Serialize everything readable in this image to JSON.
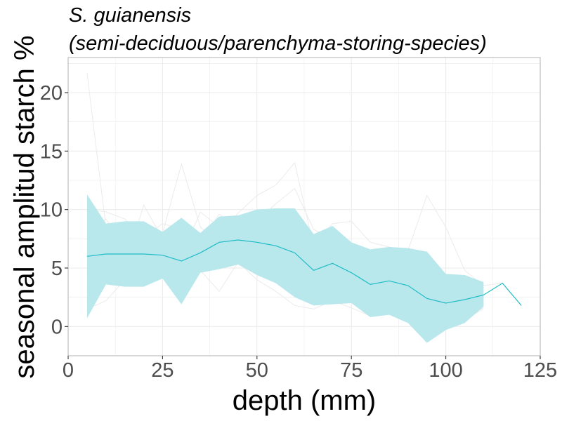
{
  "chart_data": {
    "type": "line",
    "title_lines": [
      "S. guianensis",
      "(semi-deciduous/parenchyma-storing-species)"
    ],
    "xlabel": "depth (mm)",
    "ylabel": "seasonal amplitud starch %",
    "xlim": [
      0,
      125
    ],
    "ylim": [
      -2.5,
      23
    ],
    "x_ticks": [
      0,
      25,
      50,
      75,
      100,
      125
    ],
    "y_ticks": [
      0,
      5,
      10,
      15,
      20
    ],
    "grid": true,
    "legend": "none",
    "colors": {
      "mean_line": "#1fbcc5",
      "ribbon": "#b8e7ec",
      "individual_lines": "#ebebeb",
      "grid": "#ebebeb",
      "panel_border": "#b3b3b3"
    },
    "series": [
      {
        "role": "mean",
        "x": [
          5,
          10,
          15,
          20,
          25,
          30,
          35,
          40,
          45,
          50,
          55,
          60,
          65,
          70,
          75,
          80,
          85,
          90,
          95,
          100,
          105,
          110,
          115,
          120
        ],
        "y": [
          6.0,
          6.2,
          6.2,
          6.2,
          6.1,
          5.6,
          6.3,
          7.2,
          7.4,
          7.2,
          6.9,
          6.3,
          4.8,
          5.4,
          4.6,
          3.6,
          3.9,
          3.5,
          2.4,
          2.0,
          2.3,
          2.7,
          3.7,
          1.8
        ]
      },
      {
        "role": "ribbon",
        "x": [
          5,
          10,
          15,
          20,
          25,
          30,
          35,
          40,
          45,
          50,
          55,
          60,
          65,
          70,
          75,
          80,
          85,
          90,
          95,
          100,
          105,
          110
        ],
        "upper": [
          11.3,
          8.8,
          9.0,
          9.0,
          8.1,
          9.3,
          8.0,
          9.4,
          9.5,
          10.0,
          10.1,
          10.1,
          7.9,
          8.6,
          7.2,
          6.6,
          6.8,
          6.7,
          6.4,
          4.5,
          4.4,
          3.8
        ],
        "lower": [
          0.7,
          3.6,
          3.4,
          3.4,
          4.1,
          1.9,
          4.6,
          4.9,
          5.3,
          4.4,
          3.7,
          2.5,
          1.8,
          1.9,
          2.0,
          0.8,
          1.0,
          0.3,
          -1.4,
          -0.3,
          0.3,
          1.7
        ]
      },
      {
        "role": "individual",
        "x": [
          5,
          10,
          15,
          20,
          25,
          30,
          35,
          40,
          45,
          50,
          55,
          60,
          65,
          70,
          75,
          80,
          85,
          90,
          95,
          100,
          105,
          110,
          115,
          120
        ],
        "lines": [
          [
            21.7,
            8.5,
            6.5,
            7.2,
            5.0,
            4.0,
            6.1,
            7.5,
            8.0,
            6.6,
            6.0,
            5.2,
            3.8,
            4.5,
            3.2,
            2.5,
            2.8,
            1.8,
            1.0,
            1.2,
            2.0,
            2.6
          ],
          [
            2.0,
            5.5,
            7.0,
            8.5,
            8.0,
            13.9,
            8.5,
            7.2,
            6.5,
            9.0,
            10.5,
            11.8,
            8.3,
            7.5,
            6.0,
            4.8,
            4.0,
            3.0,
            2.2,
            1.5,
            1.4,
            1.8
          ],
          [
            4.5,
            7.8,
            8.2,
            6.0,
            6.8,
            3.5,
            5.6,
            7.8,
            9.7,
            11.2,
            12.1,
            14.0,
            6.8,
            8.8,
            9.0,
            7.2,
            6.8,
            6.5,
            11.2,
            8.5,
            4.8,
            3.5,
            3.7,
            1.8
          ],
          [
            6.8,
            4.2,
            5.0,
            10.4,
            7.5,
            6.0,
            9.8,
            8.5,
            7.0,
            6.0,
            5.5,
            4.0,
            2.5,
            3.0,
            2.5,
            1.2,
            2.0,
            0.8,
            0.5,
            0.2,
            0.6,
            1.5
          ],
          [
            8.0,
            9.2,
            6.8,
            5.5,
            6.2,
            5.0,
            7.0,
            6.8,
            8.8,
            7.5,
            8.2,
            7.6,
            5.5,
            6.2,
            5.2,
            3.8,
            5.0,
            4.8,
            3.0,
            2.2,
            2.0,
            2.3
          ],
          [
            3.2,
            5.0,
            6.0,
            6.8,
            5.5,
            7.2,
            6.5,
            5.5,
            6.2,
            5.8,
            4.8,
            3.5,
            2.8,
            3.4,
            3.0,
            2.6,
            2.9,
            2.4,
            1.4,
            1.0,
            1.3,
            2.0
          ],
          [
            1.5,
            2.2,
            4.0,
            4.6,
            4.2,
            2.6,
            4.8,
            3.0,
            5.5,
            4.0,
            3.0,
            1.8,
            1.5,
            2.2,
            1.6,
            0.9,
            1.2,
            0.6,
            0.3,
            0.4,
            0.8,
            1.6
          ],
          [
            10.0,
            9.8,
            9.2,
            7.6,
            8.8,
            8.3,
            7.3,
            9.6,
            8.4,
            7.0,
            6.0,
            5.4,
            4.2,
            5.0,
            3.9,
            2.9,
            3.4,
            3.3,
            2.4,
            2.2,
            1.9,
            2.4
          ]
        ]
      }
    ]
  }
}
